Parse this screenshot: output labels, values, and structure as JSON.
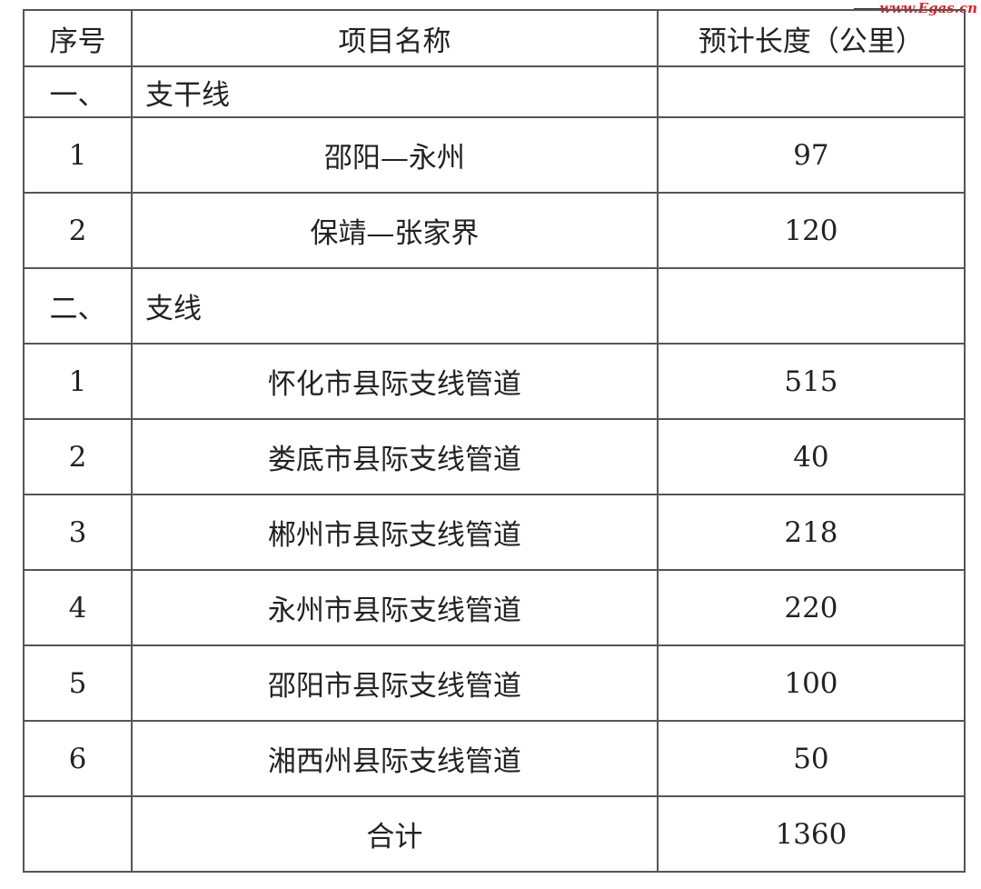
{
  "watermark": "www.Egas.cn",
  "table": {
    "headers": [
      "序号",
      "项目名称",
      "预计长度（公里）"
    ],
    "sections": [
      {
        "index": "一、",
        "title": "支干线",
        "rows": [
          {
            "no": "1",
            "name": "邵阳—永州",
            "length": "97"
          },
          {
            "no": "2",
            "name": "保靖—张家界",
            "length": "120"
          }
        ]
      },
      {
        "index": "二、",
        "title": "支线",
        "rows": [
          {
            "no": "1",
            "name": "怀化市县际支线管道",
            "length": "515"
          },
          {
            "no": "2",
            "name": "娄底市县际支线管道",
            "length": "40"
          },
          {
            "no": "3",
            "name": "郴州市县际支线管道",
            "length": "218"
          },
          {
            "no": "4",
            "name": "永州市县际支线管道",
            "length": "220"
          },
          {
            "no": "5",
            "name": "邵阳市县际支线管道",
            "length": "100"
          },
          {
            "no": "6",
            "name": "湘西州县际支线管道",
            "length": "50"
          }
        ]
      }
    ],
    "total": {
      "label": "合计",
      "length": "1360"
    }
  }
}
